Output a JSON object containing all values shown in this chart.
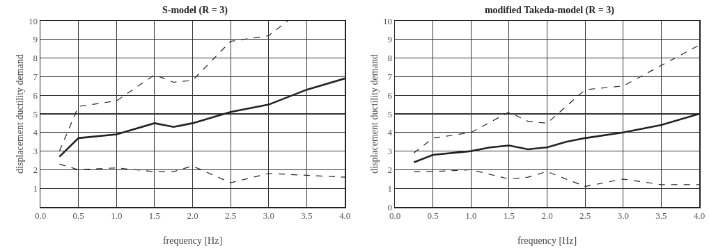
{
  "chart_data": [
    {
      "type": "line",
      "title": "S-model (R = 3)",
      "xlabel": "frequency [Hz]",
      "ylabel": "displacement ductility demand",
      "xlim": [
        0,
        4
      ],
      "xticks": [
        {
          "value": 0,
          "label": "0.0"
        },
        0.5,
        {
          "value": 1,
          "label": "1.0"
        },
        1.5,
        {
          "value": 2,
          "label": "2.0"
        },
        2.5,
        {
          "value": 3,
          "label": "3.0"
        },
        3.5,
        {
          "value": 4,
          "label": "4.0"
        }
      ],
      "ylim": [
        0,
        10
      ],
      "yticks": [
        {
          "value": 0,
          "label": null
        },
        1,
        2,
        3,
        4,
        5,
        6,
        7,
        8,
        9,
        10
      ],
      "grid": true,
      "marker": "none",
      "series": [
        {
          "color": "#222222",
          "line_style": "dashed",
          "x": [
            0.25,
            0.5,
            1.0,
            1.5,
            1.75,
            2.0,
            2.5,
            3.0,
            3.25
          ],
          "values": [
            3.0,
            5.4,
            5.7,
            7.1,
            6.7,
            6.8,
            8.9,
            9.2,
            10.0
          ]
        },
        {
          "color": "#222222",
          "line_style": "solid",
          "x": [
            0.25,
            0.5,
            1.0,
            1.5,
            1.75,
            2.0,
            2.5,
            3.0,
            3.5,
            4.0
          ],
          "values": [
            2.7,
            3.7,
            3.9,
            4.5,
            4.3,
            4.5,
            5.1,
            5.5,
            6.3,
            6.9
          ]
        },
        {
          "color": "#222222",
          "line_style": "dashed",
          "x": [
            0.25,
            0.5,
            1.0,
            1.5,
            1.75,
            2.0,
            2.5,
            3.0,
            3.5,
            4.0
          ],
          "values": [
            2.3,
            2.0,
            2.1,
            1.9,
            1.9,
            2.2,
            1.3,
            1.8,
            1.7,
            1.6
          ]
        }
      ]
    },
    {
      "type": "line",
      "title": "modified Takeda-model (R = 3)",
      "xlabel": "frequency [Hz]",
      "ylabel": "displacement ductility demand",
      "xlim": [
        0,
        4
      ],
      "xticks": [
        {
          "value": 0,
          "label": "0.0"
        },
        0.5,
        {
          "value": 1,
          "label": "1.0"
        },
        1.5,
        {
          "value": 2,
          "label": "2.0"
        },
        2.5,
        {
          "value": 3,
          "label": "3.0"
        },
        3.5,
        {
          "value": 4,
          "label": "4.0"
        }
      ],
      "ylim": [
        0,
        10
      ],
      "yticks": [
        0,
        1,
        2,
        3,
        4,
        5,
        6,
        7,
        8,
        9,
        10
      ],
      "grid": true,
      "marker": "none",
      "series": [
        {
          "color": "#222222",
          "line_style": "dashed",
          "x": [
            0.25,
            0.5,
            1.0,
            1.5,
            1.75,
            2.0,
            2.5,
            3.0,
            3.5,
            4.0
          ],
          "values": [
            2.9,
            3.7,
            4.0,
            5.1,
            4.6,
            4.5,
            6.3,
            6.5,
            7.6,
            8.7
          ]
        },
        {
          "color": "#222222",
          "line_style": "solid",
          "x": [
            0.25,
            0.5,
            1.0,
            1.25,
            1.5,
            1.75,
            2.0,
            2.25,
            2.5,
            3.0,
            3.5,
            4.0
          ],
          "values": [
            2.4,
            2.8,
            3.0,
            3.2,
            3.3,
            3.1,
            3.2,
            3.5,
            3.7,
            4.0,
            4.4,
            5.0
          ]
        },
        {
          "color": "#222222",
          "line_style": "dashed",
          "x": [
            0.25,
            0.5,
            1.0,
            1.5,
            1.75,
            2.0,
            2.5,
            3.0,
            3.5,
            4.0
          ],
          "values": [
            1.9,
            1.9,
            2.0,
            1.5,
            1.6,
            1.9,
            1.1,
            1.5,
            1.2,
            1.2
          ]
        }
      ]
    }
  ]
}
